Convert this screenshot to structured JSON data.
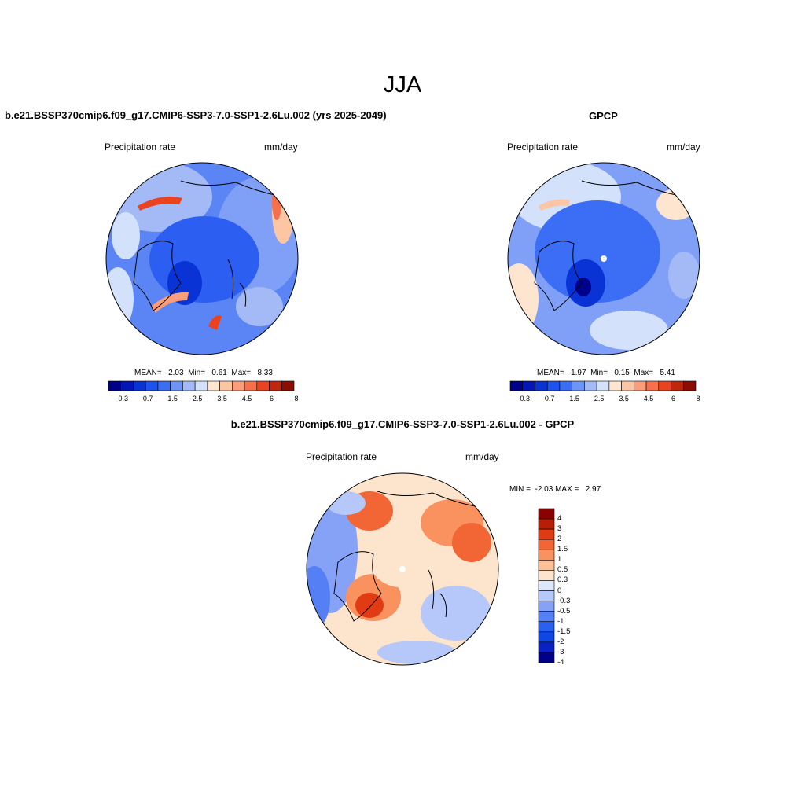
{
  "title": "JJA",
  "colors": {
    "seq": [
      "#00008b",
      "#0416b8",
      "#0a33d6",
      "#1e52f0",
      "#3b6df5",
      "#6d94f7",
      "#a4baf7",
      "#d4e1fa",
      "#fde5cf",
      "#fcc5a4",
      "#fb9c7a",
      "#f6704c",
      "#e9431f",
      "#c0260d",
      "#8b0d04"
    ],
    "diff": [
      "#00008b",
      "#0a22c4",
      "#1045e6",
      "#2860f2",
      "#557ff5",
      "#86a2f7",
      "#b6c8f9",
      "#dce7fb",
      "#fde4cc",
      "#fcbf97",
      "#f9925f",
      "#f26534",
      "#e13b14",
      "#b81d06",
      "#8b0000"
    ]
  },
  "panels": {
    "model": {
      "title": "b.e21.BSSP370cmip6.f09_g17.CMIP6-SSP3-7.0-SSP1-2.6Lu.002 (yrs 2025-2049)",
      "variable": "Precipitation rate",
      "units": "mm/day",
      "stats": "MEAN=   2.03  Min=   0.61  Max=   8.33",
      "ticks": [
        "0.3",
        "0.7",
        "1.5",
        "2.5",
        "3.5",
        "4.5",
        "6",
        "8"
      ]
    },
    "obs": {
      "title": "GPCP",
      "variable": "Precipitation rate",
      "units": "mm/day",
      "stats": "MEAN=   1.97  Min=   0.15  Max=   5.41",
      "ticks": [
        "0.3",
        "0.7",
        "1.5",
        "2.5",
        "3.5",
        "4.5",
        "6",
        "8"
      ]
    },
    "diff": {
      "title": "b.e21.BSSP370cmip6.f09_g17.CMIP6-SSP3-7.0-SSP1-2.6Lu.002 - GPCP",
      "variable": "Precipitation rate",
      "units": "mm/day",
      "stats": "MIN =  -2.03 MAX =   2.97",
      "ticks": [
        "4",
        "3",
        "2",
        "1.5",
        "1",
        "0.5",
        "0.3",
        "0",
        "-0.3",
        "-0.5",
        "-1",
        "-1.5",
        "-2",
        "-3",
        "-4"
      ]
    }
  }
}
